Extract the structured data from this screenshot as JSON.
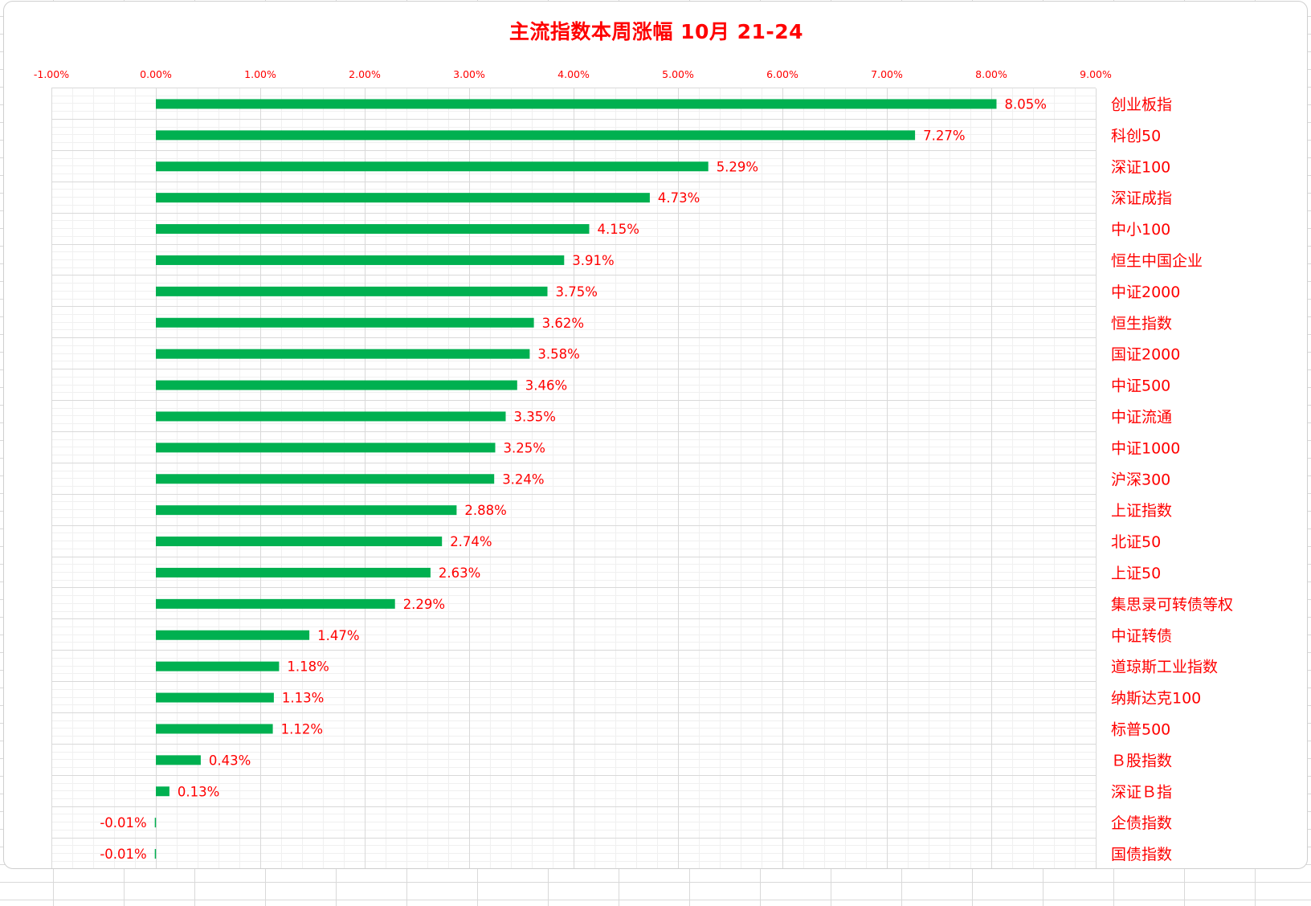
{
  "chart_data": {
    "type": "bar",
    "orientation": "horizontal",
    "title": "主流指数本周涨幅 10月 21-24",
    "xlim": [
      -0.01,
      0.09
    ],
    "x_ticks": [
      -0.01,
      0.0,
      0.01,
      0.02,
      0.03,
      0.04,
      0.05,
      0.06,
      0.07,
      0.08,
      0.09
    ],
    "x_tick_labels": [
      "-1.00%",
      "0.00%",
      "1.00%",
      "2.00%",
      "3.00%",
      "4.00%",
      "5.00%",
      "6.00%",
      "7.00%",
      "8.00%",
      "9.00%"
    ],
    "x_axis_position": "top",
    "category_position": "right",
    "grid": true,
    "categories": [
      "创业板指",
      "科创50",
      "深证100",
      "深证成指",
      "中小100",
      "恒生中国企业",
      "中证2000",
      "恒生指数",
      "国证2000",
      "中证500",
      "中证流通",
      "中证1000",
      "沪深300",
      "上证指数",
      "北证50",
      "上证50",
      "集思录可转债等权",
      "中证转债",
      "道琼斯工业指数",
      "纳斯达克100",
      "标普500",
      "Ｂ股指数",
      "深证Ｂ指",
      "企债指数",
      "国债指数"
    ],
    "values": [
      0.0805,
      0.0727,
      0.0529,
      0.0473,
      0.0415,
      0.0391,
      0.0375,
      0.0362,
      0.0358,
      0.0346,
      0.0335,
      0.0325,
      0.0324,
      0.0288,
      0.0274,
      0.0263,
      0.0229,
      0.0147,
      0.0118,
      0.0113,
      0.0112,
      0.0043,
      0.0013,
      -0.0001,
      -0.0001
    ],
    "data_labels": [
      "8.05%",
      "7.27%",
      "5.29%",
      "4.73%",
      "4.15%",
      "3.91%",
      "3.75%",
      "3.62%",
      "3.58%",
      "3.46%",
      "3.35%",
      "3.25%",
      "3.24%",
      "2.88%",
      "2.74%",
      "2.63%",
      "2.29%",
      "1.47%",
      "1.18%",
      "1.13%",
      "1.12%",
      "0.43%",
      "0.13%",
      "-0.01%",
      "-0.01%"
    ],
    "colors": {
      "bar": "#00b050",
      "text": "#ff0000",
      "major_grid": "#d9d9d9",
      "minor_grid": "#f0f0f0"
    }
  }
}
